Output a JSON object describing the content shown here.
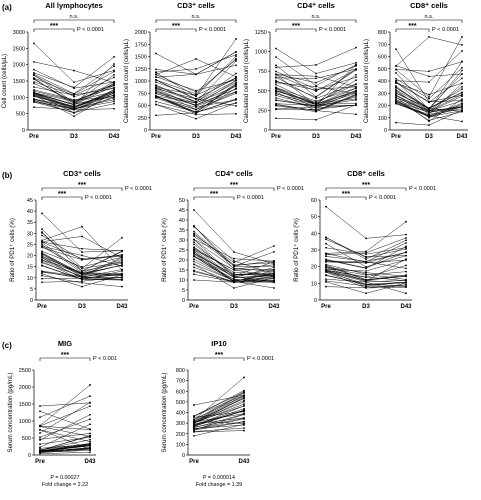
{
  "figure": {
    "panel_labels": [
      "(a)",
      "(b)",
      "(c)"
    ]
  },
  "chart_data": [
    {
      "type": "line",
      "panel": "(a)",
      "title": "All lymphocytes",
      "x": [
        "Pre",
        "D3",
        "D43"
      ],
      "ylabel": "Cell count (cells/µL)",
      "ylim": [
        0,
        3000
      ],
      "yticks": [
        0,
        500,
        1000,
        1500,
        2000,
        2500,
        3000
      ],
      "brackets": [
        {
          "from": "Pre",
          "to": "D43",
          "stars": "",
          "p": "n.s."
        },
        {
          "from": "Pre",
          "to": "D3",
          "stars": "***",
          "p": "P < 0.0001"
        }
      ],
      "seed": 11,
      "n": 36,
      "dist": [
        [
          700,
          2650,
          1200
        ],
        [
          420,
          1820,
          800
        ],
        [
          650,
          2240,
          1250
        ]
      ]
    },
    {
      "type": "line",
      "panel": "(a)",
      "title": "CD3⁺ cells",
      "x": [
        "Pre",
        "D3",
        "D43"
      ],
      "ylabel": "Calculated cell count (cells/µL)",
      "ylim": [
        0,
        2000
      ],
      "yticks": [
        0,
        250,
        500,
        750,
        1000,
        1250,
        1500,
        1750,
        2000
      ],
      "brackets": [
        {
          "from": "Pre",
          "to": "D43",
          "stars": "",
          "p": "n.s."
        },
        {
          "from": "Pre",
          "to": "D3",
          "stars": "***",
          "p": "P < 0.0001"
        }
      ],
      "seed": 23,
      "n": 36,
      "dist": [
        [
          300,
          1560,
          850
        ],
        [
          230,
          1450,
          580
        ],
        [
          330,
          1860,
          900
        ]
      ]
    },
    {
      "type": "line",
      "panel": "(a)",
      "title": "CD4⁺ cells",
      "x": [
        "Pre",
        "D3",
        "D43"
      ],
      "ylabel": "Calculated cell count (cells/µL)",
      "ylim": [
        0,
        1250
      ],
      "yticks": [
        0,
        250,
        500,
        750,
        1000,
        1250
      ],
      "brackets": [
        {
          "from": "Pre",
          "to": "D43",
          "stars": "",
          "p": "n.s."
        },
        {
          "from": "Pre",
          "to": "D3",
          "stars": "***",
          "p": "P < 0.0001"
        }
      ],
      "seed": 37,
      "n": 36,
      "dist": [
        [
          150,
          1040,
          560
        ],
        [
          130,
          830,
          360
        ],
        [
          200,
          1050,
          520
        ]
      ]
    },
    {
      "type": "line",
      "panel": "(a)",
      "title": "CD8⁺ cells",
      "x": [
        "Pre",
        "D3",
        "D43"
      ],
      "ylabel": "Calculated cell count (cells/µL)",
      "ylim": [
        0,
        800
      ],
      "yticks": [
        0,
        100,
        200,
        300,
        400,
        500,
        600,
        700,
        800
      ],
      "brackets": [
        {
          "from": "Pre",
          "to": "D43",
          "stars": "",
          "p": "n.s."
        },
        {
          "from": "Pre",
          "to": "D3",
          "stars": "***",
          "p": "P < 0.0001"
        }
      ],
      "seed": 51,
      "n": 36,
      "dist": [
        [
          60,
          660,
          280
        ],
        [
          40,
          760,
          180
        ],
        [
          70,
          760,
          290
        ]
      ]
    },
    {
      "type": "line",
      "panel": "(b)",
      "title": "CD3⁺ cells",
      "x": [
        "Pre",
        "D3",
        "D43"
      ],
      "ylabel": "Ratio of PD1⁺ cells (%)",
      "ylim": [
        0,
        45
      ],
      "yticks": [
        0,
        5,
        10,
        15,
        20,
        25,
        30,
        35,
        40,
        45
      ],
      "brackets": [
        {
          "from": "Pre",
          "to": "D43",
          "stars": "***",
          "p": "P < 0.0001"
        },
        {
          "from": "Pre",
          "to": "D3",
          "stars": "***",
          "p": "P < 0.0001"
        }
      ],
      "seed": 67,
      "n": 36,
      "dist": [
        [
          8,
          39,
          22
        ],
        [
          6,
          33,
          14
        ],
        [
          6,
          28,
          12
        ]
      ]
    },
    {
      "type": "line",
      "panel": "(b)",
      "title": "CD4⁺ cells",
      "x": [
        "Pre",
        "D3",
        "D43"
      ],
      "ylabel": "Ratio of PD1⁺ cells (%)",
      "ylim": [
        0,
        50
      ],
      "yticks": [
        0,
        5,
        10,
        15,
        20,
        25,
        30,
        35,
        40,
        45,
        50
      ],
      "brackets": [
        {
          "from": "Pre",
          "to": "D43",
          "stars": "***",
          "p": "P < 0.0001"
        },
        {
          "from": "Pre",
          "to": "D3",
          "stars": "***",
          "p": "P < 0.0001"
        }
      ],
      "seed": 79,
      "n": 36,
      "dist": [
        [
          10,
          45,
          26
        ],
        [
          6,
          24,
          13
        ],
        [
          6,
          27,
          13
        ]
      ]
    },
    {
      "type": "line",
      "panel": "(b)",
      "title": "CD8⁺ cells",
      "x": [
        "Pre",
        "D3",
        "D43"
      ],
      "ylabel": "Ratio of PD1⁺ cells (%)",
      "ylim": [
        0,
        60
      ],
      "yticks": [
        0,
        10,
        20,
        30,
        40,
        50,
        60
      ],
      "brackets": [
        {
          "from": "Pre",
          "to": "D43",
          "stars": "***",
          "p": "P < 0.0001"
        },
        {
          "from": "Pre",
          "to": "D3",
          "stars": "***",
          "p": "P < 0.0001"
        }
      ],
      "seed": 97,
      "n": 36,
      "dist": [
        [
          8,
          56,
          26
        ],
        [
          4,
          37,
          15
        ],
        [
          4,
          47,
          15
        ]
      ]
    },
    {
      "type": "line",
      "panel": "(c)",
      "title": "MIG",
      "x": [
        "Pre",
        "D43"
      ],
      "ylabel": "Serum concentration (pg/mL)",
      "ylim": [
        0,
        2500
      ],
      "yticks": [
        0,
        500,
        1000,
        1500,
        2000,
        2500
      ],
      "brackets": [
        {
          "from": "Pre",
          "to": "D43",
          "stars": "***",
          "p": "P < 0.001"
        }
      ],
      "footnote": [
        "P = 0.00027",
        "Fold change = 2.22"
      ],
      "seed": 113,
      "n": 36,
      "dist": [
        [
          40,
          1440,
          160
        ],
        [
          80,
          2060,
          340
        ]
      ]
    },
    {
      "type": "line",
      "panel": "(c)",
      "title": "IP10",
      "x": [
        "Pre",
        "D43"
      ],
      "ylabel": "Serum concentration (pg/mL)",
      "ylim": [
        0,
        800
      ],
      "yticks": [
        0,
        100,
        200,
        300,
        400,
        500,
        600,
        700,
        800
      ],
      "brackets": [
        {
          "from": "Pre",
          "to": "D43",
          "stars": "***",
          "p": "P < 0.0001"
        }
      ],
      "footnote": [
        "P = 0.000014",
        "Fold change = 1.39"
      ],
      "seed": 131,
      "n": 36,
      "dist": [
        [
          180,
          470,
          300
        ],
        [
          230,
          730,
          420
        ]
      ]
    }
  ]
}
